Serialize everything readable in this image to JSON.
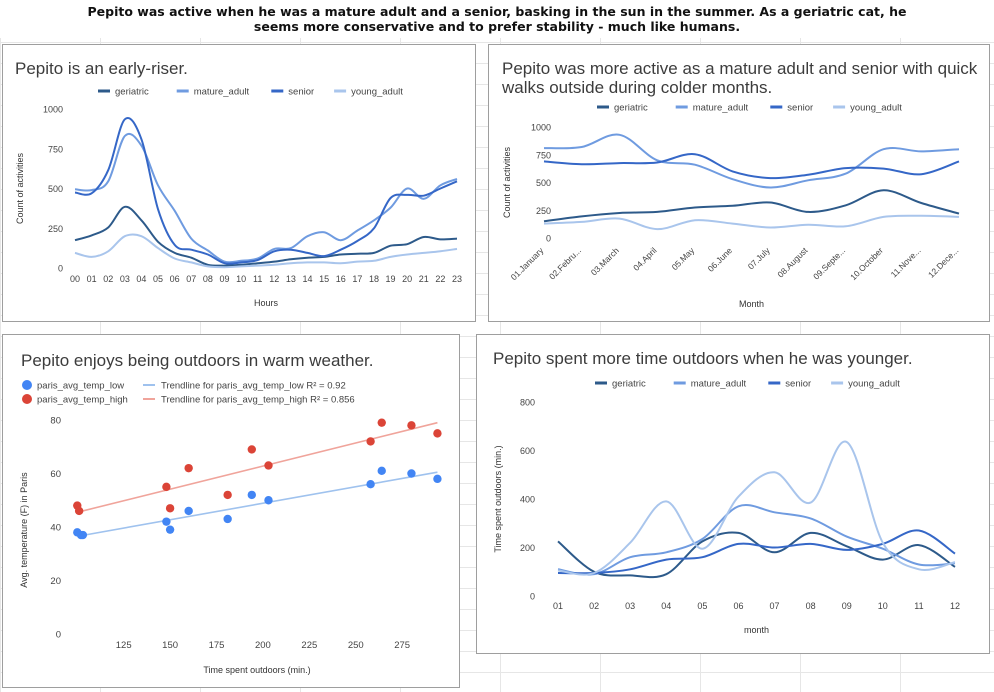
{
  "banner": {
    "line1": "Pepito was active when he was a mature adult and a senior, basking in the sun in the summer. As a geriatric cat, he",
    "line2": "seems more conservative and to prefer stability - much like humans."
  },
  "chart_data": [
    {
      "id": "hours",
      "type": "line",
      "title": "Pepito is an early-riser.",
      "xlabel": "Hours",
      "ylabel": "Count of activities",
      "ylim": [
        0,
        1000
      ],
      "yticks": [
        0,
        250,
        500,
        750,
        1000
      ],
      "categories": [
        "00",
        "01",
        "02",
        "03",
        "04",
        "05",
        "06",
        "07",
        "08",
        "09",
        "10",
        "11",
        "12",
        "13",
        "14",
        "15",
        "16",
        "17",
        "18",
        "19",
        "20",
        "21",
        "22",
        "23"
      ],
      "series": [
        {
          "name": "geriatric",
          "color": "#2d5a8a",
          "values": [
            175,
            205,
            255,
            385,
            300,
            165,
            95,
            65,
            20,
            15,
            20,
            30,
            40,
            55,
            65,
            70,
            85,
            90,
            95,
            140,
            150,
            195,
            180,
            185
          ]
        },
        {
          "name": "mature_adult",
          "color": "#6f9be0",
          "values": [
            495,
            490,
            545,
            830,
            770,
            520,
            360,
            185,
            110,
            40,
            45,
            60,
            120,
            125,
            200,
            225,
            175,
            235,
            300,
            380,
            500,
            435,
            520,
            560
          ]
        },
        {
          "name": "senior",
          "color": "#3567c7",
          "values": [
            475,
            470,
            615,
            935,
            810,
            370,
            145,
            115,
            85,
            30,
            35,
            50,
            105,
            115,
            95,
            75,
            115,
            170,
            250,
            440,
            460,
            455,
            500,
            545
          ]
        },
        {
          "name": "young_adult",
          "color": "#a9c5ec",
          "values": [
            95,
            70,
            105,
            200,
            200,
            125,
            60,
            35,
            10,
            5,
            10,
            15,
            20,
            30,
            35,
            35,
            30,
            40,
            45,
            70,
            85,
            95,
            105,
            120
          ]
        }
      ]
    },
    {
      "id": "months",
      "type": "line",
      "title": "Pepito was more active as a mature adult and senior with quick walks outside during colder months.",
      "xlabel": "Month",
      "ylabel": "Count of activities",
      "ylim": [
        0,
        1000
      ],
      "yticks": [
        0,
        250,
        500,
        750,
        1000
      ],
      "categories": [
        "01.January",
        "02.Febru...",
        "03.March",
        "04.April",
        "05.May",
        "06.June",
        "07.July",
        "08.August",
        "09.Septe...",
        "10.October",
        "11.Nove...",
        "12.Dece..."
      ],
      "series": [
        {
          "name": "geriatric",
          "color": "#2d5a8a",
          "values": [
            150,
            195,
            225,
            235,
            275,
            290,
            320,
            235,
            295,
            430,
            315,
            220
          ]
        },
        {
          "name": "mature_adult",
          "color": "#6f9be0",
          "values": [
            810,
            820,
            930,
            700,
            660,
            530,
            455,
            520,
            580,
            800,
            780,
            800
          ]
        },
        {
          "name": "senior",
          "color": "#3567c7",
          "values": [
            690,
            665,
            675,
            680,
            755,
            600,
            540,
            570,
            630,
            625,
            575,
            690
          ]
        },
        {
          "name": "young_adult",
          "color": "#a9c5ec",
          "values": [
            130,
            145,
            175,
            80,
            160,
            130,
            95,
            120,
            105,
            190,
            200,
            190
          ]
        }
      ]
    },
    {
      "id": "temperature",
      "type": "scatter",
      "title": "Pepito enjoys being outdoors in warm weather.",
      "xlabel": "Time spent outdoors (min.)",
      "ylabel": "Avg. temperature (F) in Paris",
      "xlim": [
        95,
        297
      ],
      "ylim": [
        0,
        80
      ],
      "xticks": [
        125,
        150,
        175,
        200,
        225,
        250,
        275
      ],
      "yticks": [
        0,
        20,
        40,
        60,
        80
      ],
      "series": [
        {
          "name": "paris_avg_temp_low",
          "color": "#4285f4",
          "x": [
            100,
            102,
            103,
            148,
            150,
            160,
            181,
            194,
            203,
            258,
            264,
            280,
            294
          ],
          "y": [
            38,
            37,
            37,
            42,
            39,
            46,
            43,
            52,
            50,
            56,
            61,
            60,
            58
          ]
        },
        {
          "name": "paris_avg_temp_high",
          "color": "#db4437",
          "x": [
            100,
            101,
            148,
            150,
            160,
            181,
            194,
            203,
            258,
            264,
            280,
            294
          ],
          "y": [
            48,
            46,
            55,
            47,
            62,
            52,
            69,
            63,
            72,
            79,
            78,
            75
          ]
        }
      ],
      "trendlines": [
        {
          "label": "Trendline for paris_avg_temp_low R² = 0.92",
          "color": "#9fc2ee",
          "x": [
            100,
            294
          ],
          "y": [
            36.5,
            60.5
          ]
        },
        {
          "label": "Trendline for paris_avg_temp_high R² = 0.856",
          "color": "#f0a49b",
          "x": [
            100,
            294
          ],
          "y": [
            45.5,
            79
          ]
        }
      ]
    },
    {
      "id": "outdoors",
      "type": "line",
      "title": "Pepito spent more time outdoors when he was younger.",
      "xlabel": "month",
      "ylabel": "Time spent outdoors (min.)",
      "ylim": [
        0,
        800
      ],
      "yticks": [
        0,
        200,
        400,
        600,
        800
      ],
      "categories": [
        "01",
        "02",
        "03",
        "04",
        "05",
        "06",
        "07",
        "08",
        "09",
        "10",
        "11",
        "12"
      ],
      "series": [
        {
          "name": "geriatric",
          "color": "#2d5a8a",
          "values": [
            225,
            100,
            85,
            90,
            225,
            260,
            180,
            260,
            205,
            150,
            210,
            120
          ]
        },
        {
          "name": "mature_adult",
          "color": "#6f9be0",
          "values": [
            110,
            90,
            160,
            180,
            235,
            370,
            345,
            320,
            245,
            195,
            130,
            135
          ]
        },
        {
          "name": "senior",
          "color": "#3567c7",
          "values": [
            95,
            95,
            110,
            150,
            160,
            215,
            200,
            215,
            190,
            215,
            270,
            175
          ]
        },
        {
          "name": "young_adult",
          "color": "#a9c5ec",
          "values": [
            105,
            95,
            220,
            390,
            195,
            410,
            510,
            385,
            635,
            220,
            110,
            140
          ]
        }
      ]
    }
  ]
}
